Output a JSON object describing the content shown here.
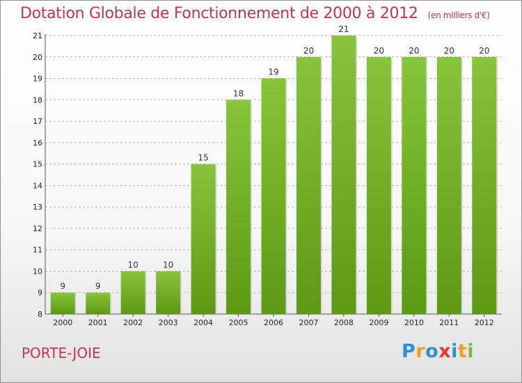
{
  "chart_data": {
    "type": "bar",
    "title": "Dotation Globale de Fonctionnement de 2000 à 2012",
    "unit_note": "(en milliers d'€)",
    "categories": [
      "2000",
      "2001",
      "2002",
      "2003",
      "2004",
      "2005",
      "2006",
      "2007",
      "2008",
      "2009",
      "2010",
      "2011",
      "2012"
    ],
    "values": [
      9,
      9,
      10,
      10,
      15,
      18,
      19,
      20,
      21,
      20,
      20,
      20,
      20
    ],
    "data_labels": [
      "9",
      "9",
      "10",
      "10",
      "15",
      "18",
      "19",
      "20",
      "21",
      "20",
      "20",
      "20",
      "20"
    ],
    "ylim": [
      8,
      21
    ],
    "yticks": [
      8,
      9,
      10,
      11,
      12,
      13,
      14,
      15,
      16,
      17,
      18,
      19,
      20,
      21
    ],
    "grid": "horizontal dashed",
    "bar_color": "#86c43a",
    "bar_color_dark": "#5d9a14"
  },
  "commune": "PORTE-JOIE",
  "logo": {
    "text": "Proxiti",
    "letters": [
      {
        "char": "P",
        "color": "#2f8fd6"
      },
      {
        "char": "r",
        "color": "#f39a1e"
      },
      {
        "char": "o",
        "color": "#2f8fd6"
      },
      {
        "char": "x",
        "color": "#e8342a"
      },
      {
        "char": "i",
        "color": "#2f8fd6"
      },
      {
        "char": "t",
        "color": "#f39a1e"
      },
      {
        "char": "i",
        "color": "#7cb82f"
      }
    ]
  }
}
